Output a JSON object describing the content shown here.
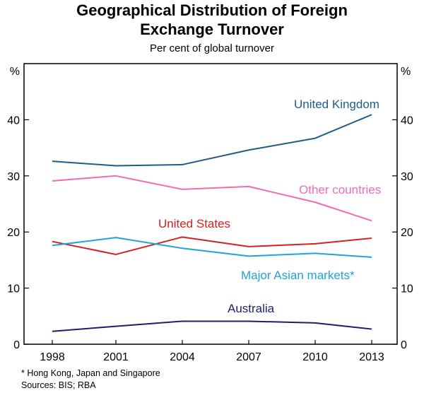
{
  "title_line1": "Geographical Distribution of Foreign",
  "title_line2": "Exchange Turnover",
  "subtitle": "Per cent of global turnover",
  "footnote": "*     Hong Kong, Japan and Singapore",
  "sources": "Sources: BIS; RBA",
  "chart_data": {
    "type": "line",
    "x": [
      1998,
      2001,
      2004,
      2007,
      2010,
      2013
    ],
    "xtick_labels": [
      "1998",
      "2001",
      "2004",
      "2007",
      "2010",
      "2013"
    ],
    "ylim": [
      0,
      50
    ],
    "yticks": [
      0,
      10,
      20,
      30,
      40
    ],
    "ylabel_left": "%",
    "ylabel_right": "%",
    "grid": false,
    "series": [
      {
        "name": "United Kingdom",
        "color": "#1f5c86",
        "values": [
          32.6,
          31.8,
          32.0,
          34.6,
          36.7,
          40.9
        ]
      },
      {
        "name": "Other countries",
        "color": "#f06cb0",
        "values": [
          29.1,
          30.0,
          27.6,
          28.1,
          25.3,
          22.0
        ]
      },
      {
        "name": "United States",
        "color": "#d62020",
        "values": [
          18.3,
          16.0,
          19.1,
          17.4,
          17.9,
          18.9
        ]
      },
      {
        "name": "Major Asian markets*",
        "color": "#1fa3d8",
        "values": [
          17.6,
          19.0,
          17.1,
          15.7,
          16.2,
          15.5
        ]
      },
      {
        "name": "Australia",
        "color": "#1c1f6e",
        "values": [
          2.3,
          3.2,
          4.1,
          4.1,
          3.8,
          2.7
        ]
      }
    ]
  }
}
